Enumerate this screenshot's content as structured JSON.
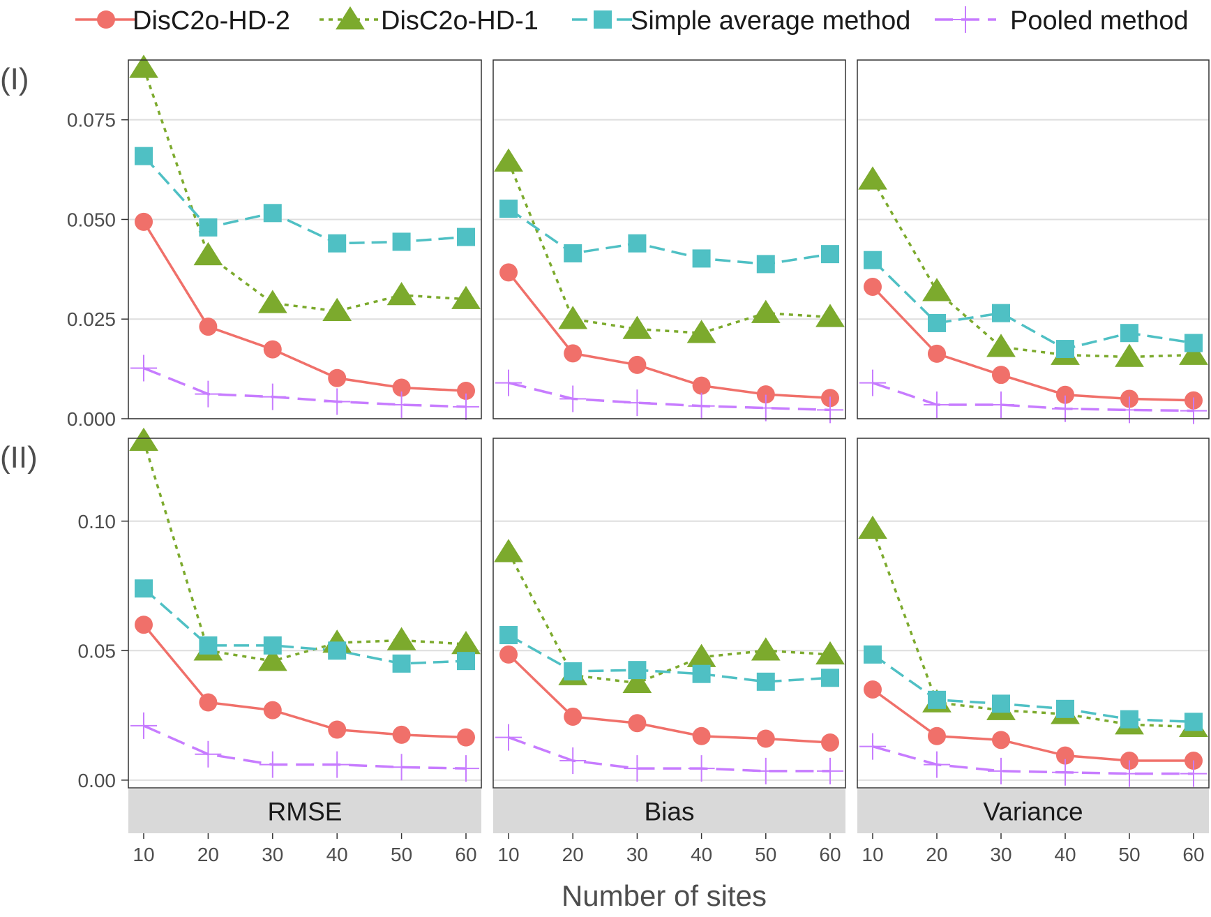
{
  "chart_data": {
    "type": "line",
    "xlabel": "Number of sites",
    "x": [
      10,
      20,
      30,
      40,
      50,
      60
    ],
    "legend": {
      "placement": "top",
      "entries": [
        {
          "name": "DisC2o-HD-2",
          "color": "#F0706A",
          "marker": "circle",
          "line": "solid"
        },
        {
          "name": "DisC2o-HD-1",
          "color": "#7CAA2D",
          "marker": "triangle",
          "line": "dotted"
        },
        {
          "name": "Simple average method",
          "color": "#4FC0C4",
          "marker": "square",
          "line": "dashed"
        },
        {
          "name": "Pooled method",
          "color": "#C77CFF",
          "marker": "plus",
          "line": "longdash"
        }
      ]
    },
    "columns": [
      "RMSE",
      "Bias",
      "Variance"
    ],
    "rows": [
      {
        "label": "(I)",
        "ylim": [
          0,
          0.09
        ],
        "yticks": [
          0,
          0.025,
          0.05,
          0.075
        ],
        "ytick_labels": [
          "0.000",
          "0.025",
          "0.050",
          "0.075"
        ],
        "panels": [
          {
            "name": "RMSE",
            "series": [
              {
                "name": "DisC2o-HD-2",
                "values": [
                  0.0494,
                  0.0231,
                  0.0174,
                  0.0102,
                  0.0078,
                  0.007
                ]
              },
              {
                "name": "DisC2o-HD-1",
                "values": [
                  0.088,
                  0.041,
                  0.029,
                  0.027,
                  0.031,
                  0.03
                ]
              },
              {
                "name": "Simple average method",
                "values": [
                  0.0659,
                  0.048,
                  0.0516,
                  0.044,
                  0.0444,
                  0.0456
                ]
              },
              {
                "name": "Pooled method",
                "values": [
                  0.0127,
                  0.0062,
                  0.0055,
                  0.0043,
                  0.0035,
                  0.003
                ]
              }
            ]
          },
          {
            "name": "Bias",
            "series": [
              {
                "name": "DisC2o-HD-2",
                "values": [
                  0.0367,
                  0.0164,
                  0.0135,
                  0.0083,
                  0.0061,
                  0.0052
                ]
              },
              {
                "name": "DisC2o-HD-1",
                "values": [
                  0.0645,
                  0.025,
                  0.0225,
                  0.0215,
                  0.0265,
                  0.0255
                ]
              },
              {
                "name": "Simple average method",
                "values": [
                  0.0527,
                  0.0415,
                  0.044,
                  0.0402,
                  0.0388,
                  0.0413
                ]
              },
              {
                "name": "Pooled method",
                "values": [
                  0.009,
                  0.005,
                  0.004,
                  0.0032,
                  0.0027,
                  0.0022
                ]
              }
            ]
          },
          {
            "name": "Variance",
            "series": [
              {
                "name": "DisC2o-HD-2",
                "values": [
                  0.0331,
                  0.0163,
                  0.011,
                  0.006,
                  0.005,
                  0.0046
                ]
              },
              {
                "name": "DisC2o-HD-1",
                "values": [
                  0.06,
                  0.032,
                  0.018,
                  0.016,
                  0.0155,
                  0.016
                ]
              },
              {
                "name": "Simple average method",
                "values": [
                  0.0398,
                  0.024,
                  0.0265,
                  0.0175,
                  0.0215,
                  0.019
                ]
              },
              {
                "name": "Pooled method",
                "values": [
                  0.009,
                  0.0035,
                  0.0035,
                  0.0025,
                  0.0022,
                  0.002
                ]
              }
            ]
          }
        ]
      },
      {
        "label": "(II)",
        "ylim": [
          -0.003,
          0.132
        ],
        "yticks": [
          0,
          0.05,
          0.1
        ],
        "ytick_labels": [
          "0.00",
          "0.05",
          "0.10"
        ],
        "panels": [
          {
            "name": "RMSE",
            "series": [
              {
                "name": "DisC2o-HD-2",
                "values": [
                  0.06,
                  0.03,
                  0.027,
                  0.0195,
                  0.0175,
                  0.0165
                ]
              },
              {
                "name": "DisC2o-HD-1",
                "values": [
                  0.131,
                  0.05,
                  0.046,
                  0.053,
                  0.054,
                  0.0525
                ]
              },
              {
                "name": "Simple average method",
                "values": [
                  0.074,
                  0.052,
                  0.052,
                  0.05,
                  0.045,
                  0.046
                ]
              },
              {
                "name": "Pooled method",
                "values": [
                  0.021,
                  0.01,
                  0.006,
                  0.006,
                  0.005,
                  0.0045
                ]
              }
            ]
          },
          {
            "name": "Bias",
            "series": [
              {
                "name": "DisC2o-HD-2",
                "values": [
                  0.0485,
                  0.0245,
                  0.022,
                  0.017,
                  0.016,
                  0.0145
                ]
              },
              {
                "name": "DisC2o-HD-1",
                "values": [
                  0.088,
                  0.0405,
                  0.0375,
                  0.0475,
                  0.05,
                  0.0485
                ]
              },
              {
                "name": "Simple average method",
                "values": [
                  0.056,
                  0.042,
                  0.0425,
                  0.041,
                  0.038,
                  0.0395
                ]
              },
              {
                "name": "Pooled method",
                "values": [
                  0.0165,
                  0.0075,
                  0.0045,
                  0.0045,
                  0.0035,
                  0.0035
                ]
              }
            ]
          },
          {
            "name": "Variance",
            "series": [
              {
                "name": "DisC2o-HD-2",
                "values": [
                  0.035,
                  0.017,
                  0.0155,
                  0.0095,
                  0.0075,
                  0.0075
                ]
              },
              {
                "name": "DisC2o-HD-1",
                "values": [
                  0.097,
                  0.03,
                  0.027,
                  0.0255,
                  0.0215,
                  0.0205
                ]
              },
              {
                "name": "Simple average method",
                "values": [
                  0.0485,
                  0.031,
                  0.0295,
                  0.0275,
                  0.0235,
                  0.0225
                ]
              },
              {
                "name": "Pooled method",
                "values": [
                  0.013,
                  0.006,
                  0.0035,
                  0.003,
                  0.0025,
                  0.0025
                ]
              }
            ]
          }
        ]
      }
    ]
  }
}
